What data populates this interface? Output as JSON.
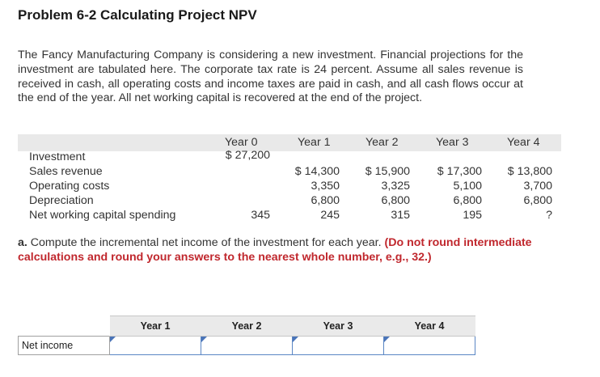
{
  "problem": {
    "title": "Problem 6-2 Calculating Project NPV",
    "intro": "The Fancy Manufacturing Company is considering a new investment. Financial projections for the investment are tabulated here. The corporate tax rate is 24 percent. Assume all sales revenue is received in cash, all operating costs and income taxes are paid in cash, and all cash flows occur at the end of the year. All net working capital is recovered at the end of the project."
  },
  "projection": {
    "headers": [
      "Year 0",
      "Year 1",
      "Year 2",
      "Year 3",
      "Year 4"
    ],
    "rows": [
      {
        "label": "Investment",
        "values": [
          "$ 27,200",
          "",
          "",
          "",
          ""
        ]
      },
      {
        "label": "Sales revenue",
        "values": [
          "",
          "$ 14,300",
          "$ 15,900",
          "$ 17,300",
          "$ 13,800"
        ]
      },
      {
        "label": "Operating costs",
        "values": [
          "",
          "3,350",
          "3,325",
          "5,100",
          "3,700"
        ]
      },
      {
        "label": "Depreciation",
        "values": [
          "",
          "6,800",
          "6,800",
          "6,800",
          "6,800"
        ]
      },
      {
        "label": "Net working capital spending",
        "values": [
          "345",
          "245",
          "315",
          "195",
          "?"
        ]
      }
    ]
  },
  "question": {
    "lead": "a.",
    "text": "Compute the incremental net income of the investment for each year.",
    "instruction": "(Do not round intermediate calculations and round your answers to the nearest whole number, e.g., 32.)"
  },
  "answer_table": {
    "headers": [
      "Year 1",
      "Year 2",
      "Year 3",
      "Year 4"
    ],
    "row_label": "Net income",
    "values": [
      "",
      "",
      "",
      ""
    ]
  }
}
